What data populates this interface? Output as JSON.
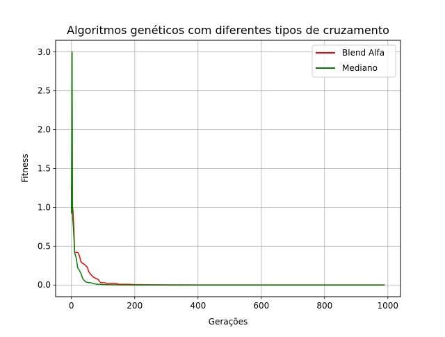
{
  "chart_data": {
    "type": "line",
    "title": "Algoritmos genéticos com diferentes tipos de cruzamento",
    "xlabel": "Gerações",
    "ylabel": "Fitness",
    "xlim": [
      -50,
      1040
    ],
    "ylim": [
      -0.15,
      3.15
    ],
    "xticks": [
      0,
      200,
      400,
      600,
      800,
      1000
    ],
    "xtick_labels": [
      "0",
      "200",
      "400",
      "600",
      "800",
      "1000"
    ],
    "yticks": [
      0.0,
      0.5,
      1.0,
      1.5,
      2.0,
      2.5,
      3.0
    ],
    "ytick_labels": [
      "0.0",
      "0.5",
      "1.0",
      "1.5",
      "2.0",
      "2.5",
      "3.0"
    ],
    "grid": true,
    "legend_position": "top-right",
    "series": [
      {
        "name": "Blend Alfa",
        "color": "#ff0000",
        "x": [
          0,
          1,
          2,
          3,
          5,
          8,
          10,
          12,
          15,
          20,
          25,
          30,
          35,
          40,
          45,
          50,
          55,
          60,
          65,
          70,
          75,
          80,
          85,
          90,
          95,
          100,
          105,
          110,
          115,
          120,
          130,
          140,
          150,
          160,
          170,
          180,
          200,
          220,
          250,
          300,
          400,
          500,
          600,
          700,
          800,
          900,
          990
        ],
        "y": [
          1.27,
          1.0,
          3.0,
          1.02,
          0.95,
          0.7,
          0.42,
          0.42,
          0.42,
          0.42,
          0.38,
          0.3,
          0.28,
          0.27,
          0.25,
          0.23,
          0.17,
          0.14,
          0.12,
          0.1,
          0.09,
          0.08,
          0.07,
          0.04,
          0.03,
          0.03,
          0.03,
          0.02,
          0.02,
          0.02,
          0.02,
          0.02,
          0.01,
          0.01,
          0.01,
          0.01,
          0.005,
          0.005,
          0.003,
          0.002,
          0.001,
          0.001,
          0.001,
          0.001,
          0.001,
          0.001,
          0.001
        ]
      },
      {
        "name": "Mediano",
        "color": "#008000",
        "x": [
          0,
          1,
          2,
          3,
          4,
          6,
          8,
          10,
          15,
          20,
          25,
          30,
          35,
          40,
          45,
          50,
          55,
          60,
          65,
          70,
          75,
          80,
          90,
          100,
          120,
          150,
          200,
          250,
          300,
          400,
          500,
          600,
          700,
          800,
          900,
          990
        ],
        "y": [
          0.92,
          2.0,
          3.0,
          1.1,
          0.85,
          0.75,
          0.6,
          0.42,
          0.35,
          0.22,
          0.19,
          0.15,
          0.09,
          0.06,
          0.04,
          0.035,
          0.03,
          0.03,
          0.025,
          0.02,
          0.015,
          0.01,
          0.01,
          0.005,
          0.003,
          0.002,
          0.001,
          0.001,
          0.001,
          0.001,
          0.001,
          0.001,
          0.001,
          0.001,
          0.001,
          0.001
        ]
      }
    ]
  }
}
